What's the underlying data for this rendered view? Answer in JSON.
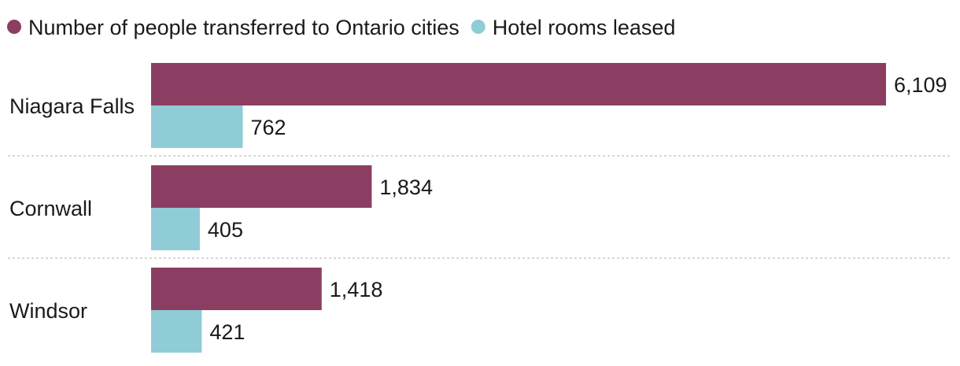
{
  "chart_data": {
    "type": "bar",
    "orientation": "horizontal",
    "categories": [
      "Niagara Falls",
      "Cornwall",
      "Windsor"
    ],
    "series": [
      {
        "name": "Number of people transferred to Ontario cities",
        "values": [
          6109,
          1834,
          1418
        ],
        "labels": [
          "6,109",
          "1,834",
          "1,418"
        ],
        "color": "#8b3e62"
      },
      {
        "name": "Hotel rooms leased",
        "values": [
          762,
          405,
          421
        ],
        "labels": [
          "762",
          "405",
          "421"
        ],
        "color": "#8fccd6"
      }
    ],
    "xlim": [
      0,
      6109
    ],
    "legend_position": "top-left",
    "grid": false,
    "separators": true
  }
}
